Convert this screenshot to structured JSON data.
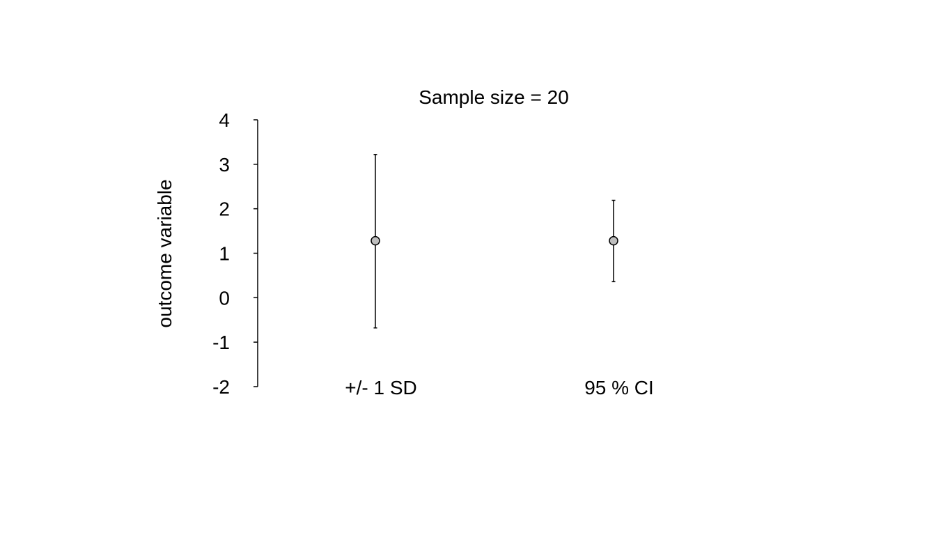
{
  "chart_data": {
    "type": "scatter",
    "title": "Sample size = 20",
    "xlabel": "",
    "ylabel": "outcome variable",
    "ylim": [
      -2,
      4
    ],
    "yticks": [
      "-2",
      "-1",
      "0",
      "1",
      "2",
      "3",
      "4"
    ],
    "categories": [
      "+/- 1 SD",
      "95 % CI"
    ],
    "points": [
      {
        "category": "+/- 1 SD",
        "mean": 1.28,
        "lower": -0.68,
        "upper": 3.22
      },
      {
        "category": "95 % CI",
        "mean": 1.28,
        "lower": 0.36,
        "upper": 2.19
      }
    ],
    "grid": false,
    "colors": {
      "marker_fill": "#bebebe",
      "line": "#000000"
    }
  }
}
